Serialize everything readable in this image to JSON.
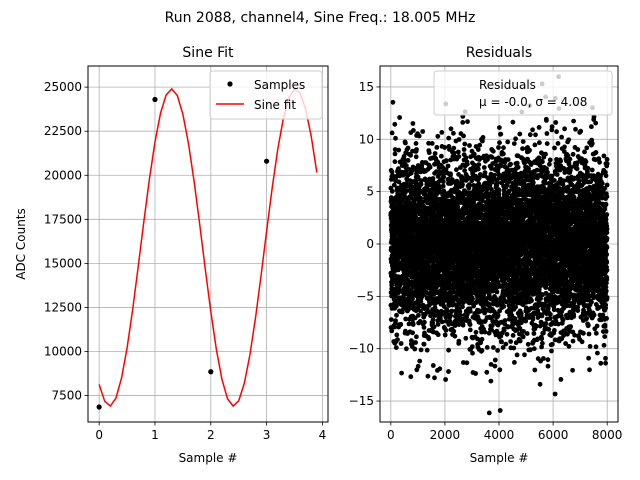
{
  "figure_title": "Run 2088, channel4, Sine Freq.: 18.005 MHz",
  "colors": {
    "fit": "#ff0000",
    "points": "#000000",
    "grid": "#b0b0b0"
  },
  "chart_data": [
    {
      "type": "line",
      "title": "Sine Fit",
      "xlabel": "Sample #",
      "ylabel": "ADC Counts",
      "xlim": [
        -0.2,
        4.1
      ],
      "ylim": [
        6000,
        26200
      ],
      "xticks": [
        0,
        1,
        2,
        3,
        4
      ],
      "yticks": [
        7500,
        10000,
        12500,
        15000,
        17500,
        20000,
        22500,
        25000
      ],
      "grid": true,
      "legend_position": "top-right",
      "legend": [
        "Samples",
        "Sine fit"
      ],
      "samples": {
        "name": "Samples",
        "x": [
          0,
          1,
          2,
          3
        ],
        "y": [
          6850,
          24300,
          8850,
          20800
        ]
      },
      "fit": {
        "name": "Sine fit",
        "amplitude": 9000,
        "offset": 15900,
        "frequency": 0.4502,
        "phase": -2.1,
        "x_start": 0,
        "x_end": 3.9,
        "x_step": 0.1
      }
    },
    {
      "type": "scatter",
      "title": "Residuals",
      "xlabel": "Sample #",
      "xlim": [
        -400,
        8400
      ],
      "ylim": [
        -17,
        17
      ],
      "xticks": [
        0,
        2000,
        4000,
        6000,
        8000
      ],
      "yticks": [
        -15,
        -10,
        -5,
        0,
        5,
        10,
        15
      ],
      "grid": true,
      "legend_position": "top-right",
      "legend_label": "Residuals",
      "legend_stats": "μ = -0.0, σ = 4.08",
      "n_points": 8000,
      "mean": 0.0,
      "sigma": 4.08
    }
  ]
}
